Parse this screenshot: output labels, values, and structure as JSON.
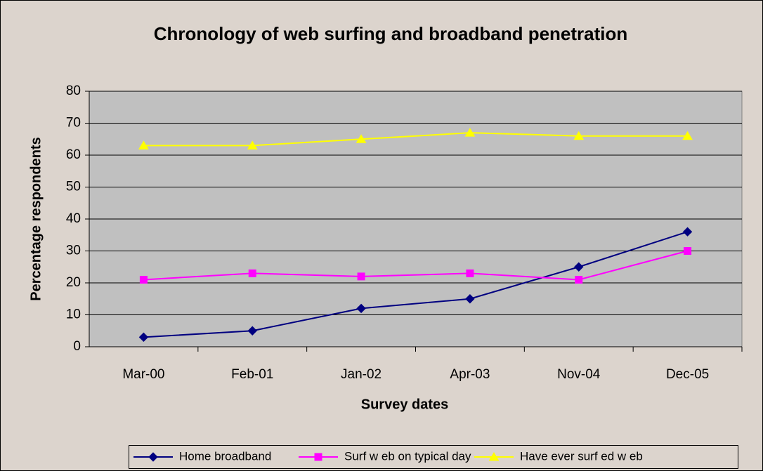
{
  "chart_data": {
    "type": "line",
    "title": "Chronology of web surfing and broadband penetration",
    "x_label": "Survey dates",
    "y_label": "Percentage respondents",
    "categories": [
      "Mar-00",
      "Feb-01",
      "Jan-02",
      "Apr-03",
      "Nov-04",
      "Dec-05"
    ],
    "series": [
      {
        "name": "Home broadband",
        "color": "#000080",
        "marker": "diamond",
        "values": [
          3,
          5,
          12,
          15,
          25,
          36
        ]
      },
      {
        "name": "Surf w eb on typical day",
        "color": "#ff00ff",
        "marker": "square",
        "values": [
          21,
          23,
          22,
          23,
          21,
          30
        ]
      },
      {
        "name": "Have ever surf ed w eb",
        "color": "#ffff00",
        "marker": "triangle",
        "values": [
          63,
          63,
          65,
          67,
          66,
          66
        ]
      }
    ],
    "ylim": [
      0,
      80
    ],
    "yticks": [
      0,
      10,
      20,
      30,
      40,
      50,
      60,
      70,
      80
    ],
    "grid": true,
    "legend": "bottom"
  }
}
